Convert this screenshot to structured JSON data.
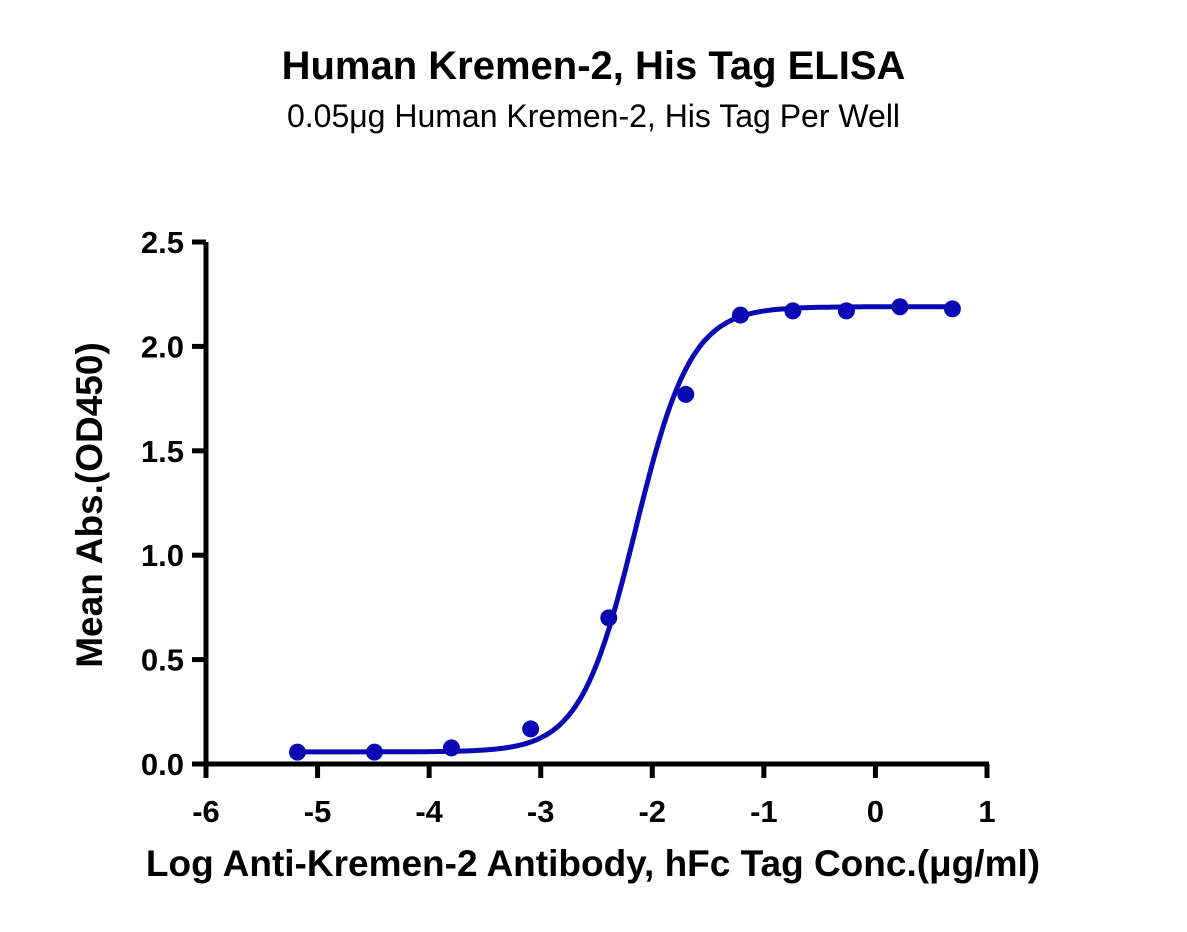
{
  "title": "Human Kremen-2, His Tag ELISA",
  "subtitle": "0.05μg Human Kremen-2, His Tag Per Well",
  "colors": {
    "series": "#0a0ab4",
    "axis": "#000000"
  },
  "chart_data": {
    "type": "scatter",
    "title": "Human Kremen-2, His Tag ELISA",
    "subtitle": "0.05μg Human Kremen-2, His Tag Per Well",
    "xlabel": "Log Anti-Kremen-2 Antibody, hFc Tag Conc.(μg/ml)",
    "ylabel": "Mean Abs.(OD450)",
    "xlim": [
      -6,
      1
    ],
    "ylim": [
      0,
      2.5
    ],
    "xticks": [
      "-6",
      "-5",
      "-4",
      "-3",
      "-2",
      "-1",
      "0",
      "1"
    ],
    "yticks": [
      "0.0",
      "0.5",
      "1.0",
      "1.5",
      "2.0",
      "2.5"
    ],
    "grid": false,
    "legend": null,
    "series": [
      {
        "name": "Human Kremen-2, His Tag",
        "x": [
          -5.18,
          -4.49,
          -3.8,
          -3.09,
          -2.39,
          -1.7,
          -1.21,
          -0.74,
          -0.26,
          0.22,
          0.69
        ],
        "y": [
          0.057,
          0.057,
          0.077,
          0.168,
          0.7,
          1.77,
          2.15,
          2.17,
          2.17,
          2.19,
          2.18
        ],
        "fit": "4PL sigmoidal curve",
        "fit_params": {
          "bottom": 0.058,
          "top": 2.19,
          "logEC50": -2.15,
          "hill": 1.75
        }
      }
    ]
  }
}
